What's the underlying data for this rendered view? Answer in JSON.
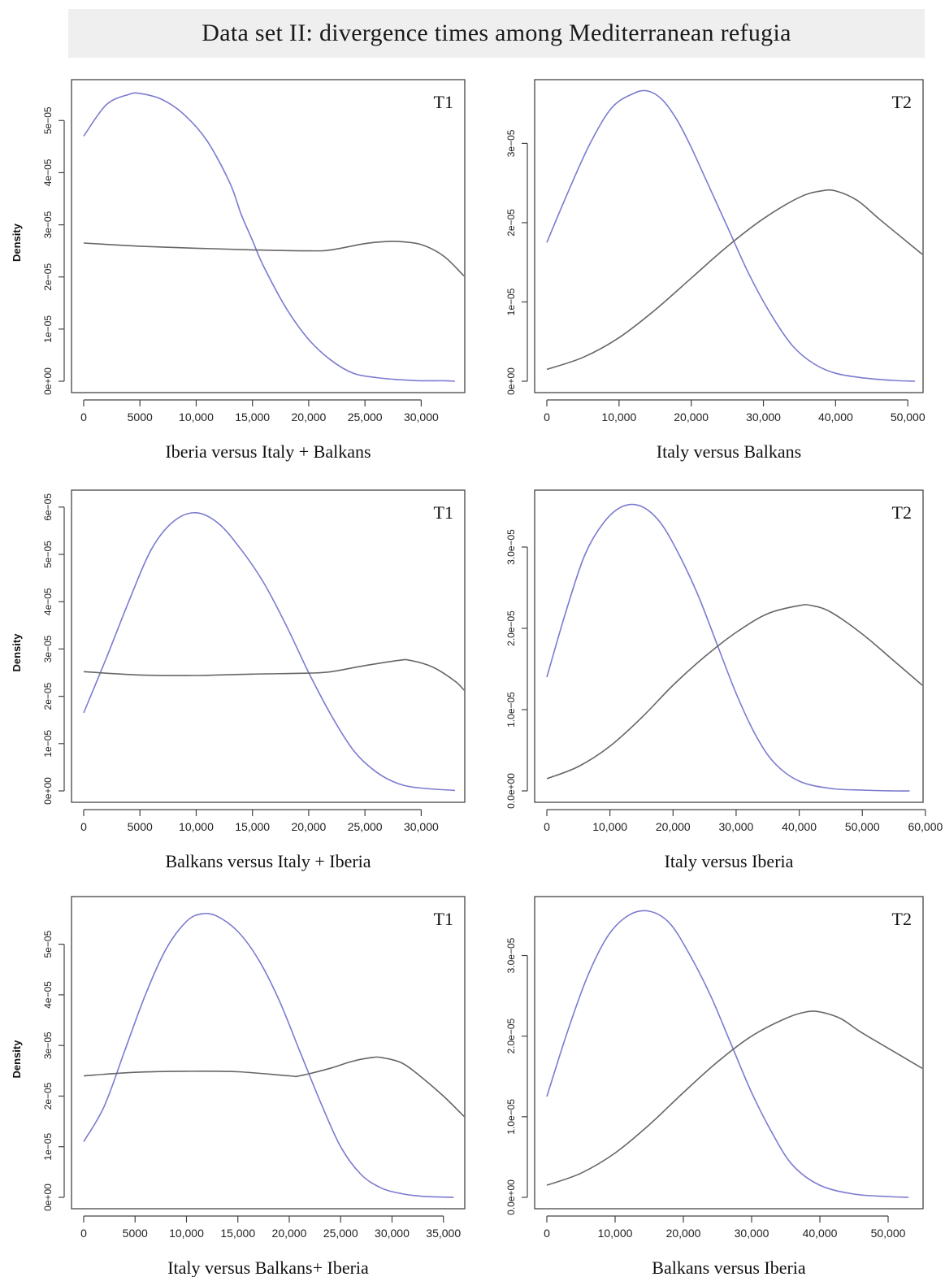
{
  "title": "Data set II: divergence times among Mediterranean refugia",
  "colors": {
    "blue_curve": "#7b7bd0",
    "grey_curve": "#666666",
    "axis": "#444444",
    "title_bg": "#efefef"
  },
  "chart_data": [
    {
      "type": "line",
      "tag": "T1",
      "ylabel": "Density",
      "xlabel": "Iberia versus Italy + Balkans",
      "xlim": [
        0,
        33800
      ],
      "ylim": [
        0,
        5.55e-05
      ],
      "xticks": [
        0,
        5000,
        10000,
        15000,
        20000,
        25000,
        30000
      ],
      "xtick_labels": [
        "0",
        "5000",
        "10,000",
        "15,000",
        "20,000",
        "25,000",
        "30,000"
      ],
      "yticks": [
        0,
        1e-05,
        2e-05,
        3e-05,
        4e-05,
        5e-05
      ],
      "ytick_labels": [
        "0e+00",
        "1e−05",
        "2e−05",
        "3e−05",
        "4e−05",
        "5e−05"
      ],
      "series": [
        {
          "color": "blue",
          "x": [
            0,
            2000,
            4000,
            5000,
            7000,
            9000,
            11000,
            13000,
            14000,
            15000,
            16000,
            18000,
            20000,
            22000,
            24000,
            26000,
            28000,
            30000,
            32000,
            33000
          ],
          "y": [
            4.7e-05,
            5.3e-05,
            5.5e-05,
            5.52e-05,
            5.4e-05,
            5.1e-05,
            4.6e-05,
            3.8e-05,
            3.2e-05,
            2.7e-05,
            2.2e-05,
            1.4e-05,
            8e-06,
            4e-06,
            1.5e-06,
            7e-07,
            3e-07,
            1e-07,
            1e-07,
            0.0
          ]
        },
        {
          "color": "grey",
          "x": [
            0,
            5000,
            10000,
            15000,
            20000,
            22000,
            25000,
            27000,
            28000,
            30000,
            32000,
            33800
          ],
          "y": [
            2.65e-05,
            2.59e-05,
            2.55e-05,
            2.52e-05,
            2.5e-05,
            2.52e-05,
            2.64e-05,
            2.68e-05,
            2.68e-05,
            2.62e-05,
            2.4e-05,
            2.02e-05
          ]
        }
      ]
    },
    {
      "type": "line",
      "tag": "T2",
      "ylabel": "",
      "xlabel": "Italy versus Balkans",
      "xlim": [
        0,
        52000
      ],
      "ylim": [
        0,
        3.65e-05
      ],
      "xticks": [
        0,
        10000,
        20000,
        30000,
        40000,
        50000
      ],
      "xtick_labels": [
        "0",
        "10,000",
        "20,000",
        "30,000",
        "40,000",
        "50,000"
      ],
      "yticks": [
        0,
        1e-05,
        2e-05,
        3e-05
      ],
      "ytick_labels": [
        "0e+00",
        "1e−05",
        "2e−05",
        "3e−05"
      ],
      "series": [
        {
          "color": "blue",
          "x": [
            0,
            3000,
            6000,
            9000,
            12000,
            14000,
            16000,
            18000,
            20000,
            22000,
            25000,
            28000,
            31000,
            34000,
            37000,
            40000,
            44000,
            48000,
            51000
          ],
          "y": [
            1.75e-05,
            2.4e-05,
            3e-05,
            3.45e-05,
            3.63e-05,
            3.66e-05,
            3.55e-05,
            3.3e-05,
            2.95e-05,
            2.55e-05,
            1.95e-05,
            1.35e-05,
            8.5e-06,
            4.5e-06,
            2.2e-06,
            1e-06,
            4e-07,
            1e-07,
            0.0
          ]
        },
        {
          "color": "grey",
          "x": [
            0,
            5000,
            10000,
            15000,
            20000,
            25000,
            30000,
            35000,
            38000,
            40000,
            43000,
            46000,
            50000,
            52000
          ],
          "y": [
            1.5e-06,
            3e-06,
            5.5e-06,
            9e-06,
            1.3e-05,
            1.7e-05,
            2.05e-05,
            2.32e-05,
            2.4e-05,
            2.4e-05,
            2.28e-05,
            2.05e-05,
            1.75e-05,
            1.6e-05
          ]
        }
      ]
    },
    {
      "type": "line",
      "tag": "T1",
      "ylabel": "Density",
      "xlabel": "Balkans versus Italy + Iberia",
      "xlim": [
        0,
        33800
      ],
      "ylim": [
        0,
        6.1e-05
      ],
      "xticks": [
        0,
        5000,
        10000,
        15000,
        20000,
        25000,
        30000
      ],
      "xtick_labels": [
        "0",
        "5000",
        "10,000",
        "15,000",
        "20,000",
        "25,000",
        "30,000"
      ],
      "yticks": [
        0,
        1e-05,
        2e-05,
        3e-05,
        4e-05,
        5e-05,
        6e-05
      ],
      "ytick_labels": [
        "0e+00",
        "1e−05",
        "2e−05",
        "3e−05",
        "4e−05",
        "5e−05",
        "6e−05"
      ],
      "series": [
        {
          "color": "blue",
          "x": [
            0,
            2000,
            4000,
            6000,
            8000,
            10000,
            12000,
            14000,
            16000,
            18000,
            20000,
            22000,
            24000,
            26000,
            28000,
            30000,
            33000
          ],
          "y": [
            1.65e-05,
            2.8e-05,
            4e-05,
            5.1e-05,
            5.7e-05,
            5.88e-05,
            5.65e-05,
            5.1e-05,
            4.4e-05,
            3.5e-05,
            2.5e-05,
            1.6e-05,
            8.5e-06,
            4e-06,
            1.5e-06,
            6e-07,
            1e-07
          ]
        },
        {
          "color": "grey",
          "x": [
            0,
            5000,
            10000,
            15000,
            20000,
            22000,
            25000,
            28000,
            29000,
            31000,
            33000,
            33800
          ],
          "y": [
            2.52e-05,
            2.45e-05,
            2.44e-05,
            2.47e-05,
            2.49e-05,
            2.52e-05,
            2.65e-05,
            2.76e-05,
            2.76e-05,
            2.62e-05,
            2.32e-05,
            2.13e-05
          ]
        }
      ]
    },
    {
      "type": "line",
      "tag": "T2",
      "ylabel": "",
      "xlabel": "Italy versus Iberia",
      "xlim": [
        0,
        59500
      ],
      "ylim": [
        0,
        3.55e-05
      ],
      "xticks": [
        0,
        10000,
        20000,
        30000,
        40000,
        50000,
        60000
      ],
      "xtick_labels": [
        "0",
        "10,000",
        "20,000",
        "30,000",
        "40,000",
        "50,000",
        "60,000"
      ],
      "yticks": [
        0,
        1e-05,
        2e-05,
        3e-05
      ],
      "ytick_labels": [
        "0.0e+00",
        "1.0e−05",
        "2.0e−05",
        "3.0e−05"
      ],
      "series": [
        {
          "color": "blue",
          "x": [
            0,
            3000,
            6000,
            9000,
            12000,
            15000,
            18000,
            21000,
            24000,
            27000,
            30000,
            33000,
            36000,
            40000,
            45000,
            50000,
            55000,
            57500
          ],
          "y": [
            1.4e-05,
            2.2e-05,
            2.9e-05,
            3.3e-05,
            3.5e-05,
            3.5e-05,
            3.3e-05,
            2.9e-05,
            2.4e-05,
            1.8e-05,
            1.2e-05,
            7e-06,
            3.5e-06,
            1.2e-06,
            3e-07,
            1e-07,
            0.0,
            0.0
          ]
        },
        {
          "color": "grey",
          "x": [
            0,
            5000,
            10000,
            15000,
            20000,
            25000,
            30000,
            35000,
            40000,
            42000,
            45000,
            50000,
            55000,
            59500
          ],
          "y": [
            1.5e-06,
            3e-06,
            5.5e-06,
            9e-06,
            1.3e-05,
            1.65e-05,
            1.95e-05,
            2.18e-05,
            2.28e-05,
            2.28e-05,
            2.2e-05,
            1.93e-05,
            1.6e-05,
            1.3e-05
          ]
        }
      ]
    },
    {
      "type": "line",
      "tag": "T1",
      "ylabel": "Density",
      "xlabel": "Italy versus Balkans+ Iberia",
      "xlim": [
        0,
        37000
      ],
      "ylim": [
        0,
        5.7e-05
      ],
      "xticks": [
        0,
        5000,
        10000,
        15000,
        20000,
        25000,
        30000,
        35000
      ],
      "xtick_labels": [
        "0",
        "5000",
        "10,000",
        "15,000",
        "20,000",
        "25,000",
        "30,000",
        "35,000"
      ],
      "yticks": [
        0,
        1e-05,
        2e-05,
        3e-05,
        4e-05,
        5e-05
      ],
      "ytick_labels": [
        "0e+00",
        "1e−05",
        "2e−05",
        "3e−05",
        "4e−05",
        "5e−05"
      ],
      "series": [
        {
          "color": "blue",
          "x": [
            0,
            2000,
            4000,
            6000,
            8000,
            10000,
            11500,
            13000,
            15000,
            17000,
            19000,
            21000,
            23000,
            25000,
            27000,
            29000,
            31000,
            33000,
            36000
          ],
          "y": [
            1.1e-05,
            1.8e-05,
            2.9e-05,
            4e-05,
            4.9e-05,
            5.45e-05,
            5.6e-05,
            5.55e-05,
            5.25e-05,
            4.7e-05,
            3.9e-05,
            2.9e-05,
            1.9e-05,
            1e-05,
            4.5e-06,
            1.8e-06,
            7e-07,
            2e-07,
            0.0
          ]
        },
        {
          "color": "grey",
          "x": [
            0,
            5000,
            10000,
            15000,
            20000,
            21000,
            24000,
            26000,
            28000,
            29000,
            31000,
            33000,
            35000,
            37000
          ],
          "y": [
            2.4e-05,
            2.47e-05,
            2.49e-05,
            2.48e-05,
            2.4e-05,
            2.4e-05,
            2.55e-05,
            2.68e-05,
            2.76e-05,
            2.76e-05,
            2.65e-05,
            2.35e-05,
            2e-05,
            1.6e-05
          ]
        }
      ]
    },
    {
      "type": "line",
      "tag": "T2",
      "ylabel": "",
      "xlabel": "Balkans versus Iberia",
      "xlim": [
        0,
        55000
      ],
      "ylim": [
        0,
        3.58e-05
      ],
      "xticks": [
        0,
        10000,
        20000,
        30000,
        40000,
        50000
      ],
      "xtick_labels": [
        "0",
        "10,000",
        "20,000",
        "30,000",
        "40,000",
        "50,000"
      ],
      "yticks": [
        0,
        1e-05,
        2e-05,
        3e-05
      ],
      "ytick_labels": [
        "0.0e+00",
        "1.0e−05",
        "2.0e−05",
        "3.0e−05"
      ],
      "series": [
        {
          "color": "blue",
          "x": [
            0,
            3000,
            6000,
            9000,
            12000,
            15000,
            18000,
            21000,
            24000,
            27000,
            30000,
            33000,
            36000,
            40000,
            45000,
            50000,
            53000
          ],
          "y": [
            1.25e-05,
            2.05e-05,
            2.75e-05,
            3.25e-05,
            3.5e-05,
            3.55e-05,
            3.4e-05,
            3e-05,
            2.5e-05,
            1.9e-05,
            1.3e-05,
            8e-06,
            4e-06,
            1.5e-06,
            4e-07,
            1e-07,
            0.0
          ]
        },
        {
          "color": "grey",
          "x": [
            0,
            5000,
            10000,
            15000,
            20000,
            25000,
            30000,
            35000,
            38000,
            40000,
            43000,
            46000,
            50000,
            55000
          ],
          "y": [
            1.5e-06,
            3e-06,
            5.5e-06,
            9e-06,
            1.3e-05,
            1.68e-05,
            2e-05,
            2.22e-05,
            2.3e-05,
            2.3e-05,
            2.22e-05,
            2.05e-05,
            1.85e-05,
            1.6e-05
          ]
        }
      ]
    }
  ]
}
